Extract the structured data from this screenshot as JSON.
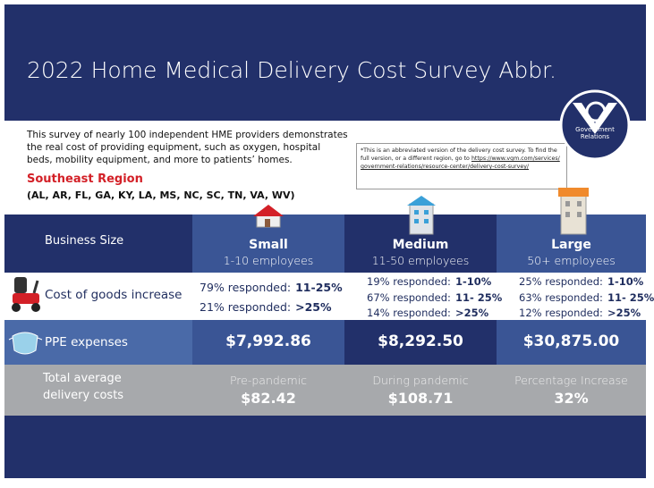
{
  "header": {
    "title": "2022 Home Medical Delivery Cost Survey Abbr.",
    "logo_text": "Government Relations"
  },
  "intro": {
    "text": "This survey of nearly 100 independent HME providers demonstrates the real cost of providing equipment, such as oxygen, hospital beds, mobility equipment, and more to patients’ homes.",
    "region": "Southeast Region",
    "states": "(AL, AR, FL, GA, KY, LA, MS, NC, SC, TN, VA, WV)"
  },
  "note": {
    "text": "*This is an abbreviated version of the delivery cost survey. To find the full version, or a different region, go to",
    "link": "https://www.vgm.com/services/government-relations/resource-center/delivery-cost-survey/"
  },
  "table": {
    "columns": [
      {
        "name": "Business Size"
      },
      {
        "name": "Small",
        "sub": "1-10 employees"
      },
      {
        "name": "Medium",
        "sub": "11-50 employees"
      },
      {
        "name": "Large",
        "sub": "50+ employees"
      }
    ],
    "cost_row": {
      "label": "Cost of goods increase",
      "cells": [
        [
          {
            "text": "79% responded:",
            "value": "11-25%"
          },
          {
            "text": "21% responded:",
            "value": ">25%"
          }
        ],
        [
          {
            "text": "19% responded:",
            "value": "1-10%"
          },
          {
            "text": "67% responded:",
            "value": "11- 25%"
          },
          {
            "text": "14% responded:",
            "value": ">25%"
          }
        ],
        [
          {
            "text": "25% responded:",
            "value": "1-10%"
          },
          {
            "text": "63% responded:",
            "value": "11- 25%"
          },
          {
            "text": "12% responded:",
            "value": ">25%"
          }
        ]
      ]
    },
    "ppe_row": {
      "label": "PPE expenses",
      "cells": [
        "$7,992.86",
        "$8,292.50",
        "$30,875.00"
      ]
    },
    "total_row": {
      "label": "Total average delivery costs",
      "cells": [
        {
          "label": "Pre-pandemic",
          "value": "$82.42"
        },
        {
          "label": "During pandemic",
          "value": "$108.71"
        },
        {
          "label": "Percentage Increase",
          "value": "32%"
        }
      ]
    }
  }
}
